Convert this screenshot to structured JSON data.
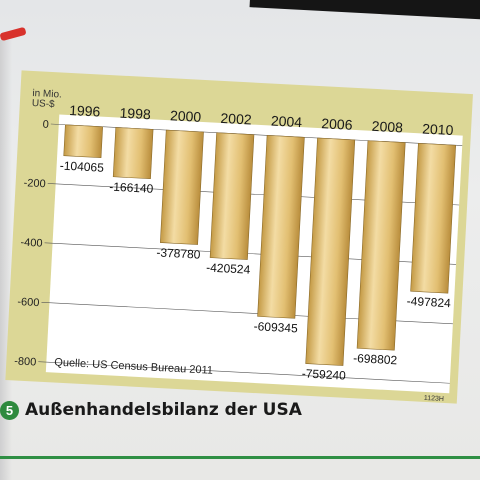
{
  "chart_data": {
    "type": "bar",
    "categories": [
      "1996",
      "1998",
      "2000",
      "2002",
      "2004",
      "2006",
      "2008",
      "2010"
    ],
    "values": [
      -104065,
      -166140,
      -378780,
      -420524,
      -609345,
      -759240,
      -698802,
      -497824
    ],
    "value_labels": [
      "-104065",
      "-166140",
      "-378780",
      "-420524",
      "-609345",
      "-759240",
      "-698802",
      "-497824"
    ],
    "yticks": [
      "0",
      "-200",
      "-400",
      "-600",
      "-800"
    ],
    "ylim": [
      -800,
      0
    ],
    "ylabel_line1": "in Mio.",
    "ylabel_line2": "US-$",
    "source": "Quelle: US Census Bureau 2011",
    "code": "1123H",
    "grid": true,
    "colors": {
      "bar_light": "#f0d79a",
      "bar_dark": "#c8a24e",
      "frame": "#d9d59a",
      "plot_bg": "#ffffff"
    }
  },
  "caption": {
    "number": "5",
    "title": "Außenhandelsbilanz der USA"
  }
}
